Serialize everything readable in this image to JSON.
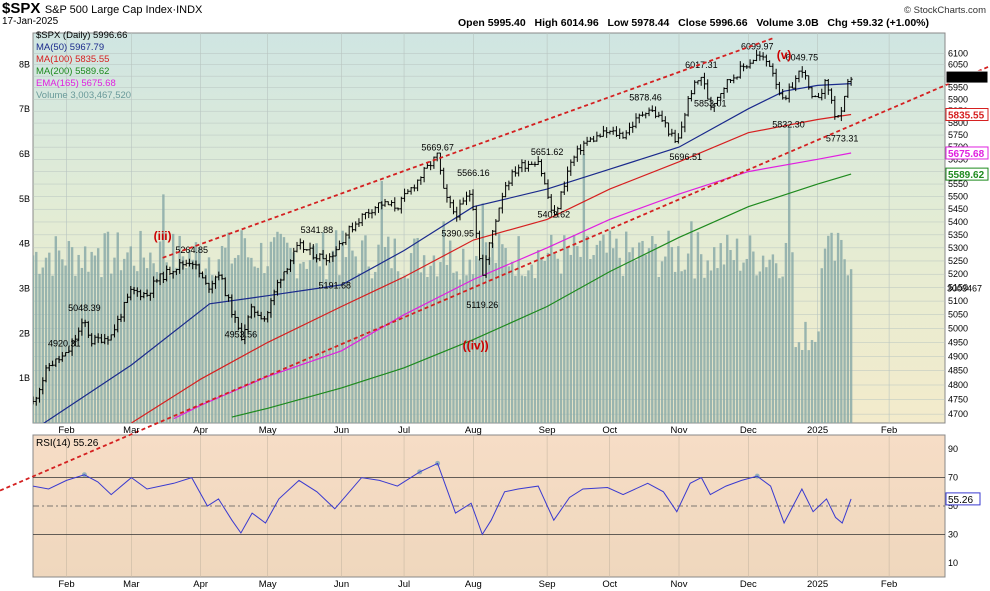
{
  "header": {
    "ticker": "$SPX",
    "index_name": "S&P 500 Large Cap Index",
    "exchange": "INDX",
    "date": "17-Jan-2025",
    "open_label": "Open",
    "open": "5995.40",
    "high_label": "High",
    "high": "6014.96",
    "low_label": "Low",
    "low": "5978.44",
    "close_label": "Close",
    "close": "5996.66",
    "volume_label": "Volume",
    "volume": "3.0B",
    "chg_label": "Chg",
    "chg": "+59.32 (+1.00%)",
    "copyright": "© StockCharts.com"
  },
  "legend": [
    {
      "text": "$SPX (Daily) 5996.66",
      "color": "#000000"
    },
    {
      "text": "MA(50) 5967.79",
      "color": "#1a2a8c"
    },
    {
      "text": "MA(100) 5835.55",
      "color": "#d62020"
    },
    {
      "text": "MA(200) 5589.62",
      "color": "#1e8a1e"
    },
    {
      "text": "EMA(165) 5675.68",
      "color": "#e020e0"
    },
    {
      "text": "Volume 3,003,467,520",
      "color": "#7aa6a6"
    }
  ],
  "rsi_label": "RSI(14) 55.26",
  "colors": {
    "ma50": "#1a2a8c",
    "ma100": "#d62020",
    "ma200": "#1e8a1e",
    "ema165": "#e020e0",
    "volume": "#8aaaa8",
    "price": "#000000",
    "trend": "#d42020",
    "wave": "#cc0000",
    "rsi": "#3a3ad0"
  },
  "chart_data": [
    {
      "type": "line",
      "title": "$SPX (Daily)",
      "y_scale": "log",
      "ylim": [
        4670,
        6190
      ],
      "xlim": [
        "2024-01-17",
        "2025-02-28"
      ],
      "x_ticks": [
        {
          "date": "2024-02-01",
          "label": "Feb"
        },
        {
          "date": "2024-03-01",
          "label": "Mar"
        },
        {
          "date": "2024-04-01",
          "label": "Apr"
        },
        {
          "date": "2024-05-01",
          "label": "May"
        },
        {
          "date": "2024-06-03",
          "label": "Jun"
        },
        {
          "date": "2024-07-01",
          "label": "Jul"
        },
        {
          "date": "2024-08-01",
          "label": "Aug"
        },
        {
          "date": "2024-09-03",
          "label": "Sep"
        },
        {
          "date": "2024-10-01",
          "label": "Oct"
        },
        {
          "date": "2024-11-01",
          "label": "Nov"
        },
        {
          "date": "2024-12-02",
          "label": "Dec"
        },
        {
          "date": "2025-01-02",
          "label": "2025"
        },
        {
          "date": "2025-02-03",
          "label": "Feb"
        }
      ],
      "y_ticks": [
        4700,
        4750,
        4800,
        4850,
        4900,
        4950,
        5000,
        5050,
        5100,
        5150,
        5200,
        5250,
        5300,
        5350,
        5400,
        5450,
        5500,
        5550,
        5600,
        5650,
        5700,
        5750,
        5800,
        5850,
        5900,
        5950,
        6000,
        6050,
        6100
      ],
      "price": {
        "x": [
          "2024-01-17",
          "2024-01-24",
          "2024-02-01",
          "2024-02-09",
          "2024-02-12",
          "2024-02-21",
          "2024-03-01",
          "2024-03-08",
          "2024-03-12",
          "2024-03-20",
          "2024-03-28",
          "2024-04-04",
          "2024-04-09",
          "2024-04-15",
          "2024-04-19",
          "2024-04-24",
          "2024-04-30",
          "2024-05-06",
          "2024-05-15",
          "2024-05-23",
          "2024-05-29",
          "2024-06-05",
          "2024-06-12",
          "2024-06-20",
          "2024-06-28",
          "2024-07-08",
          "2024-07-16",
          "2024-07-19",
          "2024-07-24",
          "2024-07-31",
          "2024-08-05",
          "2024-08-09",
          "2024-08-15",
          "2024-08-21",
          "2024-08-30",
          "2024-09-06",
          "2024-09-13",
          "2024-09-19",
          "2024-09-30",
          "2024-10-07",
          "2024-10-18",
          "2024-10-25",
          "2024-10-31",
          "2024-11-06",
          "2024-11-11",
          "2024-11-15",
          "2024-11-22",
          "2024-11-29",
          "2024-12-06",
          "2024-12-12",
          "2024-12-18",
          "2024-12-20",
          "2024-12-26",
          "2024-12-31",
          "2025-01-06",
          "2025-01-10",
          "2025-01-13",
          "2025-01-15",
          "2025-01-17"
        ],
        "y": [
          4739,
          4868,
          4906,
          5026,
          4953,
          4975,
          5137,
          5124,
          5175,
          5224,
          5254,
          5147,
          5209,
          5061,
          4967,
          5071,
          5036,
          5180,
          5308,
          5268,
          5266,
          5354,
          5421,
          5473,
          5460,
          5576,
          5667,
          5505,
          5427,
          5522,
          5186,
          5344,
          5543,
          5620,
          5648,
          5408,
          5626,
          5713,
          5762,
          5751,
          5864,
          5808,
          5705,
          5929,
          6001,
          5870,
          5969,
          6032,
          6090,
          6051,
          5872,
          5930,
          6037,
          5882,
          5975,
          5827,
          5836,
          5950,
          5996
        ],
        "annotations": [
          {
            "x": "2024-02-09",
            "y": 5048.39,
            "text": "5048.39"
          },
          {
            "x": "2024-01-31",
            "y": 4920.31,
            "text": "4920.31"
          },
          {
            "x": "2024-03-28",
            "y": 5264.85,
            "text": "5264.85"
          },
          {
            "x": "2024-04-19",
            "y": 4953.56,
            "text": "4953.56"
          },
          {
            "x": "2024-05-23",
            "y": 5341.88,
            "text": "5341.88"
          },
          {
            "x": "2024-05-31",
            "y": 5191.68,
            "text": "5191.68"
          },
          {
            "x": "2024-07-16",
            "y": 5669.67,
            "text": "5669.67"
          },
          {
            "x": "2024-07-25",
            "y": 5390.95,
            "text": "5390.95"
          },
          {
            "x": "2024-08-01",
            "y": 5566.16,
            "text": "5566.16"
          },
          {
            "x": "2024-08-05",
            "y": 5119.26,
            "text": "5119.26"
          },
          {
            "x": "2024-09-03",
            "y": 5651.62,
            "text": "5651.62"
          },
          {
            "x": "2024-09-06",
            "y": 5402.62,
            "text": "5402.62"
          },
          {
            "x": "2024-10-17",
            "y": 5878.46,
            "text": "5878.46"
          },
          {
            "x": "2024-11-04",
            "y": 5696.51,
            "text": "5696.51"
          },
          {
            "x": "2024-11-11",
            "y": 6017.31,
            "text": "6017.31"
          },
          {
            "x": "2024-11-15",
            "y": 5853.01,
            "text": "5853.01"
          },
          {
            "x": "2024-12-06",
            "y": 6099.97,
            "text": "6099.97"
          },
          {
            "x": "2024-12-20",
            "y": 5832.3,
            "text": "5832.30"
          },
          {
            "x": "2024-12-26",
            "y": 6049.75,
            "text": "6049.75"
          },
          {
            "x": "2025-01-13",
            "y": 5773.31,
            "text": "5773.31"
          }
        ]
      },
      "wave_labels": [
        {
          "x": "2024-03-15",
          "y": 5330,
          "text": "(iii)"
        },
        {
          "x": "2024-08-02",
          "y": 4925,
          "text": "((iv))"
        },
        {
          "x": "2024-12-18",
          "y": 6075,
          "text": "(v)"
        }
      ],
      "trendlines": [
        {
          "from": {
            "x": "2024-03-15",
            "y": 5262
          },
          "to": {
            "x": "2024-12-14",
            "y": 6170
          }
        },
        {
          "from": {
            "x": "2024-03-22",
            "y": 4700
          },
          "to": {
            "x": "2025-02-28",
            "y": 5960
          }
        }
      ],
      "ma50": {
        "x": [
          "2024-01-17",
          "2024-03-01",
          "2024-04-05",
          "2024-05-01",
          "2024-06-03",
          "2024-07-01",
          "2024-08-01",
          "2024-09-03",
          "2024-10-01",
          "2024-11-01",
          "2024-12-02",
          "2024-12-18",
          "2025-01-02",
          "2025-01-17"
        ],
        "y": [
          4645,
          4870,
          5090,
          5120,
          5160,
          5290,
          5460,
          5530,
          5610,
          5700,
          5860,
          5935,
          5960,
          5968
        ]
      },
      "ma100": {
        "x": [
          "2024-03-01",
          "2024-04-01",
          "2024-05-01",
          "2024-06-03",
          "2024-07-01",
          "2024-08-01",
          "2024-09-03",
          "2024-10-01",
          "2024-11-01",
          "2024-12-02",
          "2025-01-02",
          "2025-01-17"
        ],
        "y": [
          4670,
          4820,
          4950,
          5080,
          5190,
          5330,
          5410,
          5530,
          5640,
          5760,
          5815,
          5836
        ]
      },
      "ema165": {
        "x": [
          "2024-03-20",
          "2024-04-01",
          "2024-05-01",
          "2024-06-03",
          "2024-07-01",
          "2024-08-01",
          "2024-09-03",
          "2024-10-01",
          "2024-11-01",
          "2024-12-02",
          "2025-01-02",
          "2025-01-17"
        ],
        "y": [
          4685,
          4730,
          4830,
          4920,
          5050,
          5180,
          5300,
          5410,
          5510,
          5600,
          5650,
          5676
        ]
      },
      "ma200": {
        "x": [
          "2024-04-15",
          "2024-05-01",
          "2024-06-03",
          "2024-07-01",
          "2024-08-01",
          "2024-09-03",
          "2024-10-01",
          "2024-11-01",
          "2024-12-02",
          "2025-01-02",
          "2025-01-17"
        ],
        "y": [
          4690,
          4720,
          4790,
          4860,
          4960,
          5080,
          5210,
          5340,
          5460,
          5550,
          5590
        ]
      }
    },
    {
      "type": "bar",
      "title": "Volume",
      "y_ticks": [
        "1B",
        "2B",
        "3B",
        "4B",
        "5B",
        "6B",
        "7B",
        "8B"
      ],
      "last_value_label": "3003467",
      "last_value": 3003467520,
      "ylim": [
        0,
        8.7
      ],
      "units": "billions",
      "x": [
        "2024-01-24",
        "2024-02-15",
        "2024-03-15",
        "2024-04-19",
        "2024-05-31",
        "2024-06-21",
        "2024-07-19",
        "2024-08-05",
        "2024-09-20",
        "2024-10-18",
        "2024-11-06",
        "2024-12-20",
        "2025-01-10",
        "2025-01-17"
      ],
      "values": [
        3.8,
        3.9,
        5.1,
        4.3,
        4.3,
        5.4,
        4.5,
        4.9,
        6.0,
        3.9,
        4.5,
        6.6,
        3.6,
        3.0
      ],
      "baseline": 3.8
    },
    {
      "type": "line",
      "title": "RSI(14)",
      "ylim": [
        0,
        100
      ],
      "y_ticks": [
        10,
        30,
        50,
        70,
        90
      ],
      "levels": [
        30,
        50,
        70
      ],
      "last_value_label": "55.26",
      "x": [
        "2024-01-17",
        "2024-01-24",
        "2024-02-01",
        "2024-02-09",
        "2024-02-15",
        "2024-02-21",
        "2024-03-01",
        "2024-03-08",
        "2024-03-20",
        "2024-03-28",
        "2024-04-04",
        "2024-04-09",
        "2024-04-15",
        "2024-04-19",
        "2024-04-24",
        "2024-04-30",
        "2024-05-06",
        "2024-05-15",
        "2024-05-23",
        "2024-05-31",
        "2024-06-12",
        "2024-06-20",
        "2024-06-28",
        "2024-07-08",
        "2024-07-16",
        "2024-07-24",
        "2024-07-31",
        "2024-08-05",
        "2024-08-09",
        "2024-08-15",
        "2024-08-21",
        "2024-08-30",
        "2024-09-06",
        "2024-09-13",
        "2024-09-19",
        "2024-09-30",
        "2024-10-07",
        "2024-10-18",
        "2024-10-25",
        "2024-10-31",
        "2024-11-06",
        "2024-11-11",
        "2024-11-15",
        "2024-11-22",
        "2024-11-29",
        "2024-12-06",
        "2024-12-12",
        "2024-12-18",
        "2024-12-26",
        "2024-12-31",
        "2025-01-06",
        "2025-01-10",
        "2025-01-13",
        "2025-01-17"
      ],
      "values": [
        64,
        62,
        68,
        72,
        67,
        58,
        70,
        62,
        66,
        70,
        50,
        55,
        40,
        31,
        45,
        38,
        55,
        68,
        60,
        48,
        70,
        68,
        64,
        74,
        80,
        45,
        52,
        30,
        40,
        60,
        62,
        64,
        40,
        56,
        62,
        63,
        58,
        66,
        60,
        46,
        66,
        70,
        58,
        64,
        68,
        71,
        64,
        38,
        62,
        46,
        55,
        42,
        38,
        55
      ]
    }
  ]
}
